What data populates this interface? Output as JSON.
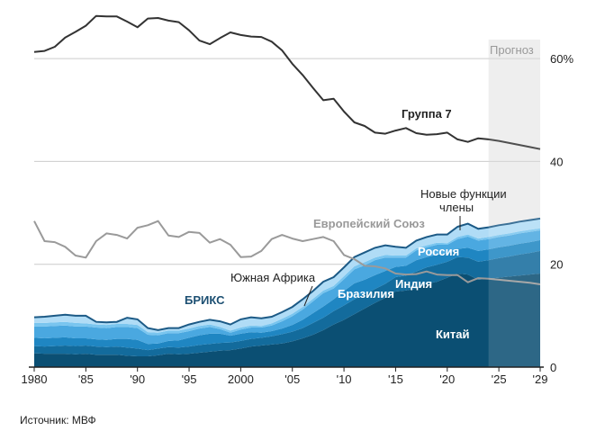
{
  "source": "Источник: МВФ",
  "colors": {
    "g7_line": "#333333",
    "eu_line": "#9a9a9a",
    "brics_label": "#1c4f72",
    "forecast_band": "#dcdcdc",
    "china": "#0b4f73",
    "india": "#136b9c",
    "brazil": "#1f86c2",
    "russia": "#4aa8e0",
    "south_africa": "#79c5ef",
    "new_members": "#b0dcf6",
    "grid": "#cccccc"
  },
  "chart_data": {
    "type": "area",
    "ylim": [
      0,
      60
    ],
    "yticks": [
      0,
      20,
      40,
      60
    ],
    "ytick_labels": [
      "0",
      "20",
      "40",
      "60%"
    ],
    "xlim": [
      1980,
      2029
    ],
    "xticks": [
      1980,
      1985,
      1990,
      1995,
      2000,
      2005,
      2010,
      2015,
      2020,
      2025,
      2029
    ],
    "xtick_labels": [
      "1980",
      "'85",
      "'90",
      "'95",
      "2000",
      "'05",
      "'10",
      "'15",
      "'20",
      "'25",
      "'29"
    ],
    "forecast": {
      "start": 2024,
      "end": 2029,
      "label": "Прогноз"
    },
    "grid": true,
    "x": [
      1980,
      1981,
      1982,
      1983,
      1984,
      1985,
      1986,
      1987,
      1988,
      1989,
      1990,
      1991,
      1992,
      1993,
      1994,
      1995,
      1996,
      1997,
      1998,
      1999,
      2000,
      2001,
      2002,
      2003,
      2004,
      2005,
      2006,
      2007,
      2008,
      2009,
      2010,
      2011,
      2012,
      2013,
      2014,
      2015,
      2016,
      2017,
      2018,
      2019,
      2020,
      2021,
      2022,
      2023,
      2024,
      2025,
      2026,
      2027,
      2028,
      2029
    ],
    "lines": [
      {
        "name": "Группа 7",
        "values": [
          61.3,
          61.5,
          62.3,
          64.1,
          65.2,
          66.4,
          68.3,
          68.2,
          68.2,
          67.2,
          66.1,
          67.8,
          67.9,
          67.4,
          67.1,
          65.5,
          63.5,
          62.8,
          64.0,
          65.1,
          64.6,
          64.3,
          64.2,
          63.3,
          61.6,
          59.0,
          56.8,
          54.3,
          51.9,
          52.2,
          49.7,
          47.6,
          46.9,
          45.6,
          45.4,
          46.0,
          46.5,
          45.5,
          45.2,
          45.3,
          45.6,
          44.3,
          43.8,
          44.5,
          44.3,
          44.0,
          43.6,
          43.2,
          42.8,
          42.4
        ]
      },
      {
        "name": "Европейский Союз",
        "values": [
          28.4,
          24.5,
          24.3,
          23.4,
          21.7,
          21.3,
          24.5,
          26.0,
          25.7,
          25.0,
          27.1,
          27.6,
          28.4,
          25.6,
          25.3,
          26.3,
          26.1,
          24.2,
          24.9,
          23.8,
          21.4,
          21.5,
          22.6,
          24.9,
          25.7,
          25.0,
          24.5,
          24.9,
          25.3,
          24.5,
          21.8,
          21.0,
          19.7,
          19.6,
          19.2,
          18.2,
          18.0,
          18.1,
          18.6,
          18.0,
          17.9,
          17.9,
          16.5,
          17.3,
          17.2,
          17.0,
          16.8,
          16.6,
          16.4,
          16.1
        ]
      }
    ],
    "stacked": [
      {
        "name": "Китай",
        "values": [
          2.7,
          2.6,
          2.6,
          2.6,
          2.5,
          2.6,
          2.4,
          2.4,
          2.4,
          2.2,
          2.1,
          2.1,
          2.3,
          2.6,
          2.5,
          2.6,
          2.8,
          3.0,
          3.2,
          3.3,
          3.6,
          4.0,
          4.2,
          4.4,
          4.6,
          5.0,
          5.6,
          6.3,
          7.2,
          8.3,
          9.2,
          10.3,
          11.4,
          12.5,
          13.5,
          14.7,
          14.9,
          15.3,
          16.2,
          16.6,
          17.4,
          18.2,
          18.0,
          17.0,
          17.2,
          17.4,
          17.6,
          17.8,
          18.0,
          18.2
        ]
      },
      {
        "name": "Индия",
        "values": [
          1.4,
          1.4,
          1.5,
          1.6,
          1.6,
          1.6,
          1.6,
          1.5,
          1.6,
          1.6,
          1.5,
          1.2,
          1.3,
          1.3,
          1.3,
          1.4,
          1.5,
          1.5,
          1.5,
          1.5,
          1.5,
          1.5,
          1.5,
          1.6,
          1.8,
          1.9,
          2.0,
          2.3,
          2.4,
          2.6,
          2.8,
          2.9,
          2.8,
          2.7,
          2.7,
          2.8,
          2.9,
          3.3,
          3.2,
          3.3,
          3.1,
          3.2,
          3.3,
          3.5,
          3.6,
          3.8,
          3.9,
          4.1,
          4.2,
          4.4
        ]
      },
      {
        "name": "Бразилия",
        "values": [
          1.6,
          1.6,
          1.6,
          1.6,
          1.5,
          1.4,
          1.4,
          1.4,
          1.5,
          1.7,
          1.7,
          1.2,
          1.0,
          1.2,
          1.4,
          1.7,
          1.9,
          2.0,
          1.8,
          1.3,
          1.4,
          1.3,
          1.0,
          1.0,
          1.1,
          1.3,
          1.6,
          1.9,
          2.2,
          2.3,
          2.8,
          3.1,
          2.8,
          2.7,
          2.5,
          2.0,
          1.9,
          2.2,
          2.0,
          2.0,
          1.6,
          1.6,
          1.9,
          2.1,
          2.1,
          2.1,
          2.1,
          2.1,
          2.1,
          2.1
        ]
      },
      {
        "name": "Россия",
        "values": [
          2.2,
          2.3,
          2.3,
          2.3,
          2.3,
          2.3,
          2.3,
          2.3,
          2.3,
          2.3,
          2.3,
          1.8,
          1.6,
          1.5,
          1.4,
          1.3,
          1.3,
          1.3,
          0.9,
          0.6,
          0.8,
          0.9,
          1.0,
          1.1,
          1.4,
          1.7,
          2.0,
          2.3,
          2.6,
          2.1,
          2.3,
          2.7,
          2.8,
          2.9,
          2.6,
          1.8,
          1.6,
          1.9,
          1.9,
          1.9,
          1.7,
          1.9,
          2.2,
          2.0,
          2.0,
          2.0,
          2.0,
          2.0,
          2.0,
          1.9
        ]
      },
      {
        "name": "Южная Африка",
        "values": [
          0.7,
          0.7,
          0.7,
          0.7,
          0.7,
          0.6,
          0.6,
          0.6,
          0.6,
          0.6,
          0.6,
          0.5,
          0.5,
          0.5,
          0.5,
          0.5,
          0.5,
          0.5,
          0.4,
          0.4,
          0.4,
          0.4,
          0.3,
          0.4,
          0.5,
          0.5,
          0.5,
          0.5,
          0.5,
          0.5,
          0.6,
          0.6,
          0.6,
          0.5,
          0.5,
          0.4,
          0.4,
          0.4,
          0.4,
          0.4,
          0.3,
          0.4,
          0.4,
          0.4,
          0.4,
          0.4,
          0.4,
          0.4,
          0.4,
          0.4
        ]
      },
      {
        "name": "Новые функции члены",
        "values": [
          1.1,
          1.2,
          1.3,
          1.4,
          1.4,
          1.5,
          0.5,
          0.5,
          0.4,
          1.2,
          1.1,
          0.8,
          0.5,
          0.5,
          0.5,
          0.8,
          0.8,
          0.9,
          1.1,
          1.2,
          1.6,
          1.6,
          1.5,
          1.3,
          1.3,
          1.3,
          1.5,
          1.5,
          1.7,
          1.7,
          1.7,
          1.8,
          1.9,
          1.9,
          1.9,
          1.7,
          1.5,
          1.5,
          1.6,
          1.6,
          1.7,
          2.0,
          2.1,
          1.9,
          1.9,
          1.9,
          1.9,
          1.9,
          1.9,
          1.9
        ]
      }
    ],
    "labels": {
      "g7": "Группа 7",
      "eu": "Европейский Союз",
      "brics": "БРИКС",
      "south_africa": "Южная Африка",
      "new_members": "Новые функции члены",
      "russia": "Россия",
      "india": "Индия",
      "brazil": "Бразилия",
      "china": "Китай"
    }
  }
}
